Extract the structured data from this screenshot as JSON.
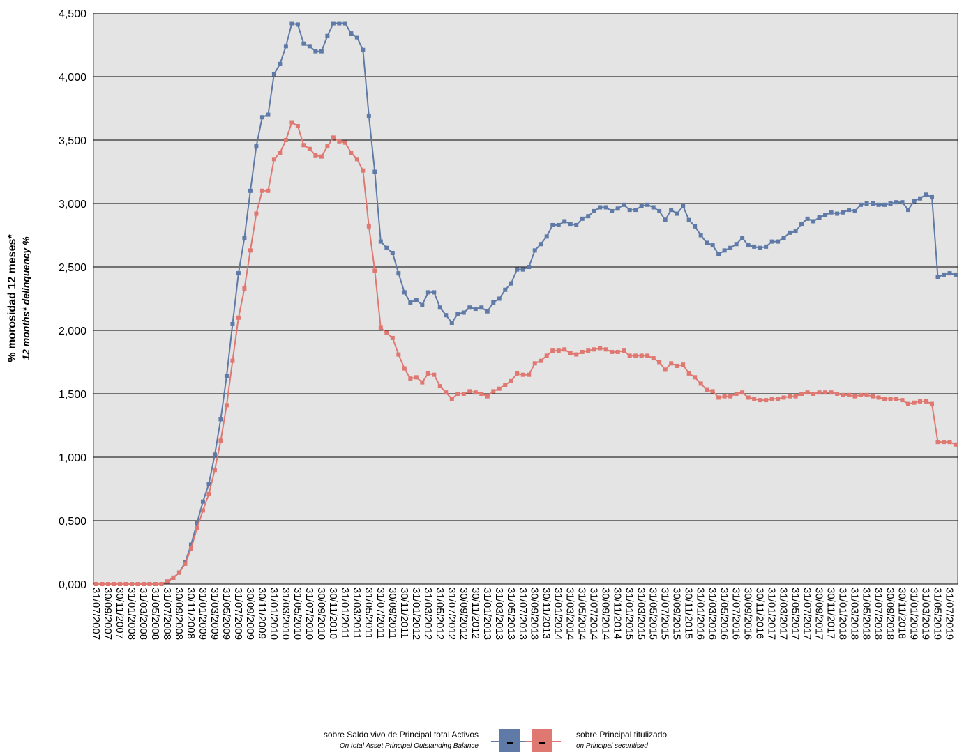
{
  "chart_data": {
    "type": "line",
    "y_label": "% morosidad 12 meses*",
    "y_label_en": "12 months* delinquency %",
    "categories": [
      "31/07/2007",
      null,
      "30/09/2007",
      null,
      "30/11/2007",
      null,
      "31/01/2008",
      null,
      "31/03/2008",
      null,
      "31/05/2008",
      null,
      "31/07/2008",
      null,
      "30/09/2008",
      null,
      "30/11/2008",
      null,
      "31/01/2009",
      null,
      "31/03/2009",
      null,
      "31/05/2009",
      null,
      "31/07/2009",
      null,
      "30/09/2009",
      null,
      "30/11/2009",
      null,
      "31/01/2010",
      null,
      "31/03/2010",
      null,
      "31/05/2010",
      null,
      "31/07/2010",
      null,
      "30/09/2010",
      null,
      "30/11/2010",
      null,
      "31/01/2011",
      null,
      "31/03/2011",
      null,
      "31/05/2011",
      null,
      "31/07/2011",
      null,
      "30/09/2011",
      null,
      "30/11/2011",
      null,
      "31/01/2012",
      null,
      "31/03/2012",
      null,
      "31/05/2012",
      null,
      "31/07/2012",
      null,
      "30/09/2012",
      null,
      "30/11/2012",
      null,
      "31/01/2013",
      null,
      "31/03/2013",
      null,
      "31/05/2013",
      null,
      "31/07/2013",
      null,
      "30/09/2013",
      null,
      "30/11/2013",
      null,
      "31/01/2014",
      null,
      "31/03/2014",
      null,
      "31/05/2014",
      null,
      "31/07/2014",
      null,
      "30/09/2014",
      null,
      "30/11/2014",
      null,
      "31/01/2015",
      null,
      "31/03/2015",
      null,
      "31/05/2015",
      null,
      "31/07/2015",
      null,
      "30/09/2015",
      null,
      "30/11/2015",
      null,
      "31/01/2016",
      null,
      "31/03/2016",
      null,
      "31/05/2016",
      null,
      "31/07/2016",
      null,
      "30/09/2016",
      null,
      "30/11/2016",
      null,
      "31/01/2017",
      null,
      "31/03/2017",
      null,
      "31/05/2017",
      null,
      "31/07/2017",
      null,
      "30/09/2017",
      null,
      "30/11/2017",
      null,
      "31/01/2018",
      null,
      "31/03/2018",
      null,
      "31/05/2018",
      null,
      "31/07/2018",
      null,
      "30/09/2018",
      null,
      "30/11/2018",
      null,
      "31/01/2019",
      null,
      "31/03/2019",
      null,
      "31/05/2019",
      null,
      "31/07/2019",
      null
    ],
    "series": [
      {
        "name": "sobre Saldo vivo de Principal total Activos",
        "subname": "On total Asset Principal Outstanding Balance",
        "color": "#5f7aa6",
        "values": [
          0,
          0,
          0,
          0,
          0,
          0,
          0,
          0,
          0,
          0,
          0,
          0,
          0.02,
          0.05,
          0.09,
          0.17,
          0.31,
          0.48,
          0.65,
          0.79,
          1.02,
          1.3,
          1.64,
          2.05,
          2.45,
          2.73,
          3.1,
          3.45,
          3.68,
          3.7,
          4.02,
          4.1,
          4.24,
          4.42,
          4.41,
          4.26,
          4.24,
          4.2,
          4.2,
          4.32,
          4.42,
          4.42,
          4.42,
          4.34,
          4.31,
          4.21,
          3.69,
          3.25,
          2.7,
          2.65,
          2.61,
          2.45,
          2.3,
          2.22,
          2.24,
          2.2,
          2.3,
          2.3,
          2.18,
          2.12,
          2.06,
          2.13,
          2.14,
          2.18,
          2.17,
          2.18,
          2.15,
          2.22,
          2.25,
          2.32,
          2.37,
          2.48,
          2.48,
          2.5,
          2.63,
          2.68,
          2.74,
          2.83,
          2.83,
          2.86,
          2.84,
          2.83,
          2.88,
          2.9,
          2.94,
          2.97,
          2.97,
          2.94,
          2.96,
          2.99,
          2.95,
          2.95,
          2.98,
          2.99,
          2.97,
          2.94,
          2.87,
          2.95,
          2.92,
          2.98,
          2.87,
          2.82,
          2.75,
          2.69,
          2.67,
          2.6,
          2.63,
          2.65,
          2.68,
          2.73,
          2.67,
          2.66,
          2.65,
          2.66,
          2.7,
          2.7,
          2.73,
          2.77,
          2.78,
          2.84,
          2.88,
          2.86,
          2.89,
          2.91,
          2.93,
          2.92,
          2.93,
          2.95,
          2.94,
          2.99,
          3.0,
          3.0,
          2.99,
          2.99,
          3.0,
          3.01,
          3.01,
          2.95,
          3.02,
          3.04,
          3.07,
          3.05,
          2.42,
          2.44,
          2.45,
          2.44
        ]
      },
      {
        "name": "sobre Principal titulizado",
        "subname": "on Principal securitised",
        "color": "#e07872",
        "values": [
          0,
          0,
          0,
          0,
          0,
          0,
          0,
          0,
          0,
          0,
          0,
          0,
          0.02,
          0.05,
          0.09,
          0.16,
          0.28,
          0.44,
          0.58,
          0.71,
          0.9,
          1.13,
          1.41,
          1.76,
          2.1,
          2.33,
          2.63,
          2.92,
          3.1,
          3.1,
          3.35,
          3.4,
          3.5,
          3.64,
          3.61,
          3.46,
          3.43,
          3.38,
          3.37,
          3.45,
          3.52,
          3.49,
          3.48,
          3.4,
          3.35,
          3.26,
          2.82,
          2.47,
          2.02,
          1.98,
          1.94,
          1.81,
          1.7,
          1.62,
          1.63,
          1.59,
          1.66,
          1.65,
          1.56,
          1.51,
          1.46,
          1.5,
          1.5,
          1.52,
          1.51,
          1.5,
          1.48,
          1.52,
          1.54,
          1.57,
          1.6,
          1.66,
          1.65,
          1.65,
          1.74,
          1.76,
          1.8,
          1.84,
          1.84,
          1.85,
          1.82,
          1.81,
          1.83,
          1.84,
          1.85,
          1.86,
          1.85,
          1.83,
          1.83,
          1.84,
          1.8,
          1.8,
          1.8,
          1.8,
          1.78,
          1.75,
          1.69,
          1.74,
          1.72,
          1.73,
          1.66,
          1.63,
          1.58,
          1.53,
          1.52,
          1.47,
          1.48,
          1.48,
          1.5,
          1.51,
          1.47,
          1.46,
          1.45,
          1.45,
          1.46,
          1.46,
          1.47,
          1.48,
          1.48,
          1.5,
          1.51,
          1.5,
          1.51,
          1.51,
          1.51,
          1.5,
          1.49,
          1.49,
          1.48,
          1.49,
          1.49,
          1.48,
          1.47,
          1.46,
          1.46,
          1.46,
          1.45,
          1.42,
          1.43,
          1.44,
          1.44,
          1.42,
          1.12,
          1.12,
          1.12,
          1.1
        ]
      }
    ],
    "ylim": [
      0,
      4.5
    ],
    "yticks": [
      {
        "value": 0,
        "label": "0,000"
      },
      {
        "value": 0.5,
        "label": "0,500"
      },
      {
        "value": 1,
        "label": "1,000"
      },
      {
        "value": 1.5,
        "label": "1,500"
      },
      {
        "value": 2,
        "label": "2,000"
      },
      {
        "value": 2.5,
        "label": "2,500"
      },
      {
        "value": 3,
        "label": "3,000"
      },
      {
        "value": 3.5,
        "label": "3,500"
      },
      {
        "value": 4,
        "label": "4,000"
      },
      {
        "value": 4.5,
        "label": "4,500"
      }
    ],
    "grid": true
  }
}
